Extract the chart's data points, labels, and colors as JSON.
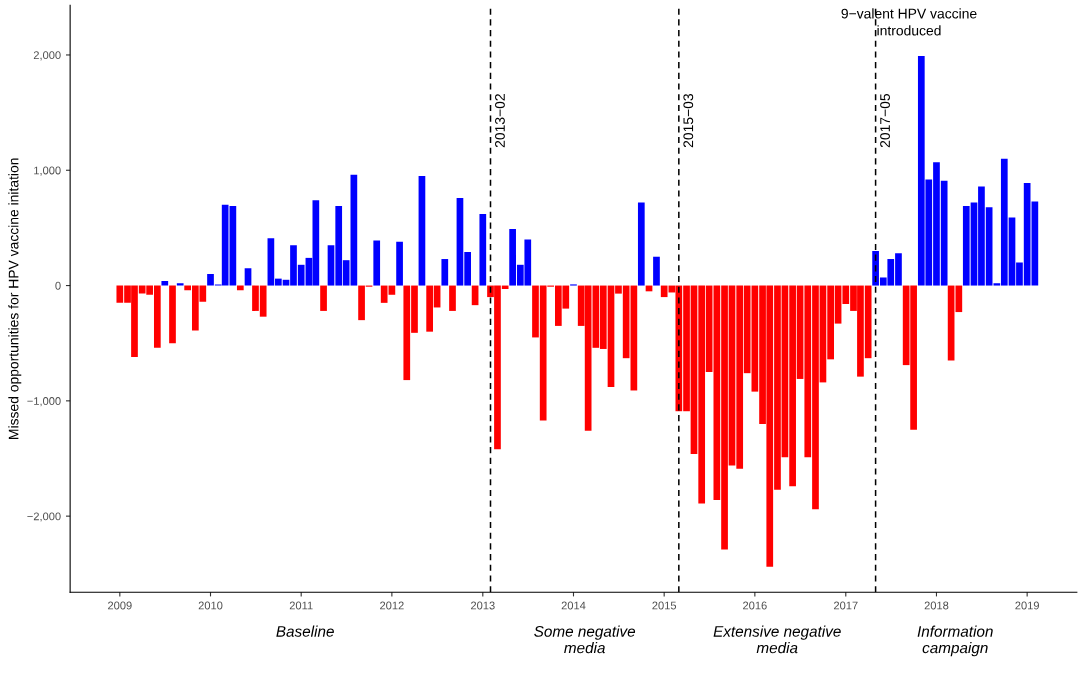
{
  "chart_data": {
    "type": "bar",
    "ylabel": "Missed opportunities for HPV vaccine initation",
    "x": [
      "2009-01",
      "2009-02",
      "2009-03",
      "2009-04",
      "2009-05",
      "2009-06",
      "2009-07",
      "2009-08",
      "2009-09",
      "2009-10",
      "2009-11",
      "2009-12",
      "2010-01",
      "2010-02",
      "2010-03",
      "2010-04",
      "2010-05",
      "2010-06",
      "2010-07",
      "2010-08",
      "2010-09",
      "2010-10",
      "2010-11",
      "2010-12",
      "2011-01",
      "2011-02",
      "2011-03",
      "2011-04",
      "2011-05",
      "2011-06",
      "2011-07",
      "2011-08",
      "2011-09",
      "2011-10",
      "2011-11",
      "2011-12",
      "2012-01",
      "2012-02",
      "2012-03",
      "2012-04",
      "2012-05",
      "2012-06",
      "2012-07",
      "2012-08",
      "2012-09",
      "2012-10",
      "2012-11",
      "2012-12",
      "2013-01",
      "2013-02",
      "2013-03",
      "2013-04",
      "2013-05",
      "2013-06",
      "2013-07",
      "2013-08",
      "2013-09",
      "2013-10",
      "2013-11",
      "2013-12",
      "2014-01",
      "2014-02",
      "2014-03",
      "2014-04",
      "2014-05",
      "2014-06",
      "2014-07",
      "2014-08",
      "2014-09",
      "2014-10",
      "2014-11",
      "2014-12",
      "2015-01",
      "2015-02",
      "2015-03",
      "2015-04",
      "2015-05",
      "2015-06",
      "2015-07",
      "2015-08",
      "2015-09",
      "2015-10",
      "2015-11",
      "2015-12",
      "2016-01",
      "2016-02",
      "2016-03",
      "2016-04",
      "2016-05",
      "2016-06",
      "2016-07",
      "2016-08",
      "2016-09",
      "2016-10",
      "2016-11",
      "2016-12",
      "2017-01",
      "2017-02",
      "2017-03",
      "2017-04",
      "2017-05",
      "2017-06",
      "2017-07",
      "2017-08",
      "2017-09",
      "2017-10",
      "2017-11",
      "2017-12",
      "2018-01",
      "2018-02",
      "2018-03",
      "2018-04",
      "2018-05",
      "2018-06",
      "2018-07",
      "2018-08",
      "2018-09",
      "2018-10",
      "2018-11",
      "2018-12",
      "2019-01",
      "2019-02"
    ],
    "values": [
      -150,
      -150,
      -620,
      -70,
      -80,
      -540,
      40,
      -500,
      20,
      -40,
      -390,
      -140,
      100,
      10,
      700,
      690,
      -40,
      150,
      -220,
      -270,
      410,
      60,
      50,
      350,
      180,
      240,
      740,
      -220,
      350,
      690,
      220,
      960,
      -300,
      -10,
      390,
      -150,
      -80,
      380,
      -820,
      -410,
      950,
      -400,
      -190,
      230,
      -220,
      760,
      290,
      -170,
      620,
      -100,
      -1420,
      -30,
      490,
      180,
      400,
      -450,
      -1170,
      -10,
      -350,
      -200,
      10,
      -350,
      -1260,
      -540,
      -550,
      -880,
      -70,
      -630,
      -910,
      720,
      -50,
      250,
      -100,
      -60,
      -1090,
      -1090,
      -1460,
      -1890,
      -750,
      -1860,
      -2290,
      -1560,
      -1590,
      -760,
      -920,
      -1200,
      -2440,
      -1770,
      -1490,
      -1740,
      -810,
      -1490,
      -1940,
      -840,
      -640,
      -330,
      -160,
      -220,
      -790,
      -630,
      300,
      70,
      230,
      280,
      -690,
      -1250,
      1990,
      920,
      1070,
      910,
      -650,
      -230,
      690,
      720,
      860,
      680,
      20,
      1100,
      590,
      200,
      890,
      730
    ],
    "colors": [
      "#ff0000",
      "#ff0000",
      "#ff0000",
      "#ff0000",
      "#ff0000",
      "#ff0000",
      "#0000ff",
      "#ff0000",
      "#0000ff",
      "#ff0000",
      "#ff0000",
      "#ff0000",
      "#0000ff",
      "#0000ff",
      "#0000ff",
      "#0000ff",
      "#ff0000",
      "#0000ff",
      "#ff0000",
      "#ff0000",
      "#0000ff",
      "#0000ff",
      "#0000ff",
      "#0000ff",
      "#0000ff",
      "#0000ff",
      "#0000ff",
      "#ff0000",
      "#0000ff",
      "#0000ff",
      "#0000ff",
      "#0000ff",
      "#ff0000",
      "#ff0000",
      "#0000ff",
      "#ff0000",
      "#ff0000",
      "#0000ff",
      "#ff0000",
      "#ff0000",
      "#0000ff",
      "#ff0000",
      "#ff0000",
      "#0000ff",
      "#ff0000",
      "#0000ff",
      "#0000ff",
      "#ff0000",
      "#0000ff",
      "#ff0000",
      "#ff0000",
      "#ff0000",
      "#0000ff",
      "#0000ff",
      "#0000ff",
      "#ff0000",
      "#ff0000",
      "#ff0000",
      "#ff0000",
      "#ff0000",
      "#0000ff",
      "#ff0000",
      "#ff0000",
      "#ff0000",
      "#ff0000",
      "#ff0000",
      "#ff0000",
      "#ff0000",
      "#ff0000",
      "#0000ff",
      "#ff0000",
      "#0000ff",
      "#ff0000",
      "#ff0000",
      "#ff0000",
      "#ff0000",
      "#ff0000",
      "#ff0000",
      "#ff0000",
      "#ff0000",
      "#ff0000",
      "#ff0000",
      "#ff0000",
      "#ff0000",
      "#ff0000",
      "#ff0000",
      "#ff0000",
      "#ff0000",
      "#ff0000",
      "#ff0000",
      "#ff0000",
      "#ff0000",
      "#ff0000",
      "#ff0000",
      "#ff0000",
      "#ff0000",
      "#ff0000",
      "#ff0000",
      "#ff0000",
      "#ff0000",
      "#0000ff",
      "#0000ff",
      "#0000ff",
      "#0000ff",
      "#ff0000",
      "#ff0000",
      "#0000ff",
      "#0000ff",
      "#0000ff",
      "#0000ff",
      "#ff0000",
      "#ff0000",
      "#0000ff",
      "#0000ff",
      "#0000ff",
      "#0000ff",
      "#0000ff",
      "#0000ff",
      "#0000ff",
      "#0000ff",
      "#0000ff",
      "#0000ff"
    ],
    "xlim": [
      "2008-06-15",
      "2019-07-20"
    ],
    "xticks": [
      "2009",
      "2010",
      "2011",
      "2012",
      "2013",
      "2014",
      "2015",
      "2016",
      "2017",
      "2018",
      "2019"
    ],
    "ylim": [
      -2660,
      2430
    ],
    "yticks": [
      {
        "value": -2000,
        "label": "−2,000"
      },
      {
        "value": -1000,
        "label": "−1,000"
      },
      0,
      {
        "value": 1000,
        "label": "1,000"
      },
      {
        "value": 2000,
        "label": "2,000"
      }
    ],
    "grid": false,
    "ref_lines": [
      {
        "axis": "x",
        "value": "2013-02",
        "label": "2013−02",
        "color": "#000000",
        "line_style": "dashed"
      },
      {
        "axis": "x",
        "value": "2015-03",
        "label": "2015−03",
        "color": "#000000",
        "line_style": "dashed"
      },
      {
        "axis": "x",
        "value": "2017-05",
        "label": "2017−05",
        "color": "#000000",
        "line_style": "dashed"
      }
    ],
    "annotations": [
      "9−valent HPV vaccine\nintroduced",
      "Baseline",
      "Some negative\nmedia",
      "Extensive negative\nmedia",
      "Information\ncampaign"
    ]
  }
}
